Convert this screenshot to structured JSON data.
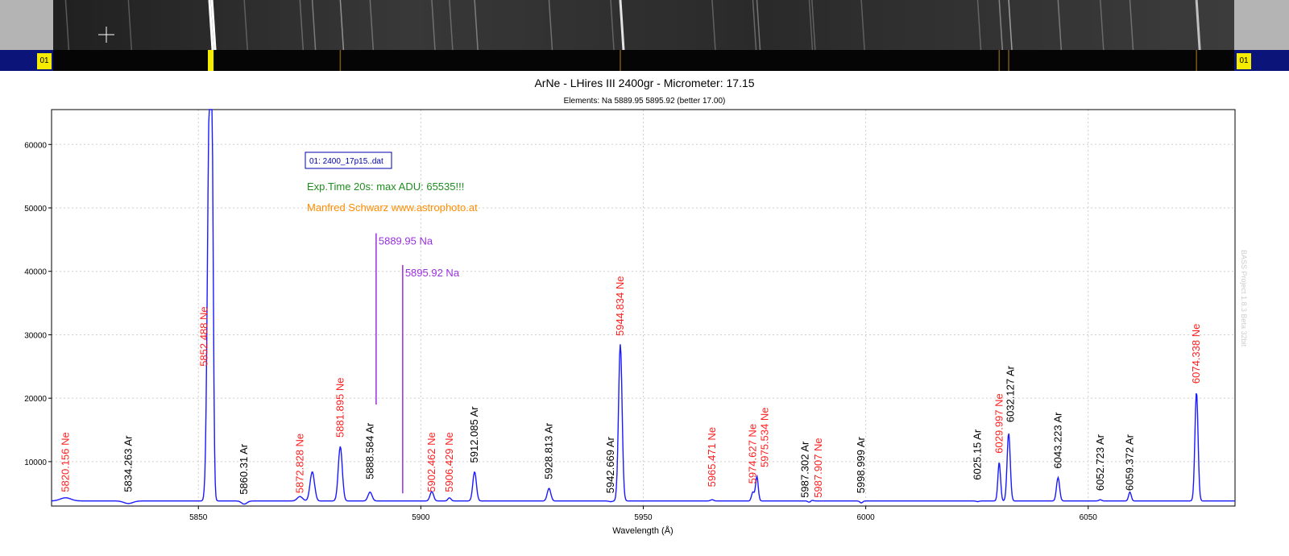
{
  "top_strip": {
    "label_left": "01",
    "label_right": "01"
  },
  "chart_data": {
    "type": "line",
    "title": "ArNe - LHires III 2400gr - Micrometer: 17.15",
    "subtitle": "Elements: Na 5889.95 5895.92 (better 17.00)",
    "xlabel": "Wavelength (Å)",
    "ylabel": "",
    "xlim": [
      5817,
      5850
    ],
    "xlim_note": "",
    "x_range": [
      5817,
      6083
    ],
    "ylim": [
      3000,
      65500
    ],
    "x_ticks": [
      5850,
      5900,
      5950,
      6000,
      6050
    ],
    "y_ticks": [
      10000,
      20000,
      30000,
      40000,
      50000,
      60000
    ],
    "grid": true,
    "legend": {
      "label": "01: 2400_17p15..dat",
      "position": "top-left"
    },
    "annotations": {
      "exposure": "Exp.Time 20s: max ADU: 65535!!!",
      "author": "Manfred Schwarz www.astrophoto.at",
      "watermark": "BASS Project 1.8.3 Beta 32bit"
    },
    "colors": {
      "series": "#1a1aff",
      "ne": "#ff1e1e",
      "ar": "#000000",
      "na": "#9a30e0",
      "exposure": "#1e8c1e",
      "author": "#ff8c00"
    },
    "baseline": 3800,
    "peaks": [
      {
        "x": 5820.156,
        "y": 4300,
        "w": 1.2
      },
      {
        "x": 5834.263,
        "y": 3400,
        "w": 1.0
      },
      {
        "x": 5852.488,
        "y": 65500,
        "w": 0.45
      },
      {
        "x": 5853.05,
        "y": 46000,
        "w": 0.3
      },
      {
        "x": 5860.31,
        "y": 3300,
        "w": 0.6
      },
      {
        "x": 5872.828,
        "y": 4500,
        "w": 0.6
      },
      {
        "x": 5875.6,
        "y": 8400,
        "w": 0.5
      },
      {
        "x": 5881.895,
        "y": 12400,
        "w": 0.45
      },
      {
        "x": 5888.584,
        "y": 5200,
        "w": 0.45
      },
      {
        "x": 5902.462,
        "y": 5300,
        "w": 0.4
      },
      {
        "x": 5906.429,
        "y": 4300,
        "w": 0.35
      },
      {
        "x": 5912.085,
        "y": 8400,
        "w": 0.4
      },
      {
        "x": 5928.813,
        "y": 5800,
        "w": 0.4
      },
      {
        "x": 5942.669,
        "y": 3700,
        "w": 0.4
      },
      {
        "x": 5944.834,
        "y": 28500,
        "w": 0.4
      },
      {
        "x": 5965.471,
        "y": 4000,
        "w": 0.35
      },
      {
        "x": 5974.627,
        "y": 5200,
        "w": 0.3
      },
      {
        "x": 5975.534,
        "y": 7700,
        "w": 0.3
      },
      {
        "x": 5987.302,
        "y": 3600,
        "w": 0.3
      },
      {
        "x": 5987.907,
        "y": 3900,
        "w": 0.3
      },
      {
        "x": 5998.999,
        "y": 3500,
        "w": 0.3
      },
      {
        "x": 6025.15,
        "y": 3700,
        "w": 0.3
      },
      {
        "x": 6029.997,
        "y": 9900,
        "w": 0.3
      },
      {
        "x": 6032.127,
        "y": 14500,
        "w": 0.35
      },
      {
        "x": 6043.223,
        "y": 7500,
        "w": 0.35
      },
      {
        "x": 6052.723,
        "y": 4000,
        "w": 0.3
      },
      {
        "x": 6059.372,
        "y": 5200,
        "w": 0.3
      },
      {
        "x": 6074.338,
        "y": 21000,
        "w": 0.35
      }
    ],
    "line_labels": [
      {
        "text": "5820.156 Ne",
        "x": 5820.156,
        "element": "ne",
        "y": 5200
      },
      {
        "text": "5834.263 Ar",
        "x": 5834.263,
        "element": "ar",
        "y": 5200
      },
      {
        "text": "5852.488 Ne",
        "x": 5851.3,
        "element": "ne",
        "y": 25000
      },
      {
        "text": "5860.31 Ar",
        "x": 5860.31,
        "element": "ar",
        "y": 4800
      },
      {
        "text": "5872.828 Ne",
        "x": 5872.828,
        "element": "ne",
        "y": 5000
      },
      {
        "text": "5881.895 Ne",
        "x": 5881.895,
        "element": "ne",
        "y": 13800
      },
      {
        "text": "5888.584 Ar",
        "x": 5888.584,
        "element": "ar",
        "y": 7200
      },
      {
        "text": "5902.462 Ne",
        "x": 5902.462,
        "element": "ne",
        "y": 5200
      },
      {
        "text": "5906.429 Ne",
        "x": 5906.429,
        "element": "ne",
        "y": 5200
      },
      {
        "text": "5912.085 Ar",
        "x": 5912.085,
        "element": "ar",
        "y": 9800
      },
      {
        "text": "5928.813 Ar",
        "x": 5928.813,
        "element": "ar",
        "y": 7200
      },
      {
        "text": "5942.669 Ar",
        "x": 5942.669,
        "element": "ar",
        "y": 5000
      },
      {
        "text": "5944.834 Ne",
        "x": 5944.834,
        "element": "ne",
        "y": 29800
      },
      {
        "text": "5965.471 Ne",
        "x": 5965.471,
        "element": "ne",
        "y": 6000
      },
      {
        "text": "5974.627 Ne",
        "x": 5974.627,
        "element": "ne",
        "y": 6500
      },
      {
        "text": "5975.534 Ne",
        "x": 5977.3,
        "element": "ne",
        "y": 9100
      },
      {
        "text": "5987.302 Ar",
        "x": 5986.4,
        "element": "ar",
        "y": 4300
      },
      {
        "text": "5987.907 Ne",
        "x": 5989.4,
        "element": "ne",
        "y": 4300
      },
      {
        "text": "5998.999 Ar",
        "x": 5998.999,
        "element": "ar",
        "y": 5000
      },
      {
        "text": "6025.15 Ar",
        "x": 6025.15,
        "element": "ar",
        "y": 7100
      },
      {
        "text": "6029.997 Ne",
        "x": 6029.997,
        "element": "ne",
        "y": 11300
      },
      {
        "text": "6032.127 Ar",
        "x": 6032.6,
        "element": "ar",
        "y": 16200
      },
      {
        "text": "6043.223 Ar",
        "x": 6043.223,
        "element": "ar",
        "y": 8900
      },
      {
        "text": "6052.723 Ar",
        "x": 6052.723,
        "element": "ar",
        "y": 5400
      },
      {
        "text": "6059.372 Ar",
        "x": 6059.372,
        "element": "ar",
        "y": 5400
      },
      {
        "text": "6074.338 Ne",
        "x": 6074.338,
        "element": "ne",
        "y": 22300
      }
    ],
    "reference_lines": [
      {
        "text": "5889.95 Na",
        "x": 5889.95,
        "y_from": 19000,
        "y_to": 46000
      },
      {
        "text": "5895.92 Na",
        "x": 5895.92,
        "y_from": 5000,
        "y_to": 41000
      }
    ]
  }
}
